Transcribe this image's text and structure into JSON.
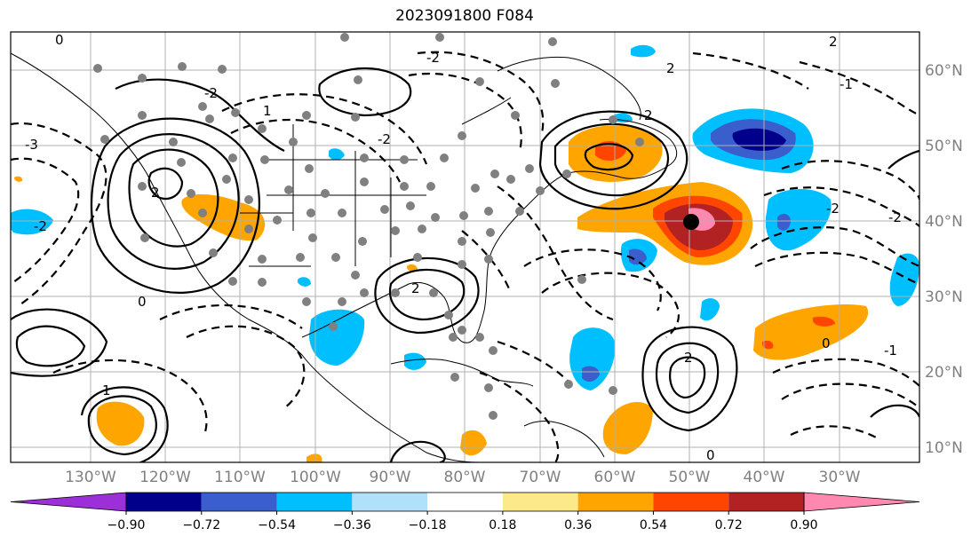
{
  "title": "2023091800 F084",
  "lat_labels": [
    "60°N",
    "50°N",
    "40°N",
    "30°N",
    "20°N",
    "10°N"
  ],
  "lon_labels": [
    "130°W",
    "120°W",
    "110°W",
    "100°W",
    "90°W",
    "80°W",
    "70°W",
    "60°W",
    "50°W",
    "40°W",
    "30°W"
  ],
  "colorbar": {
    "ticks": [
      "−0.90",
      "−0.72",
      "−0.54",
      "−0.36",
      "−0.18",
      "0.18",
      "0.36",
      "0.54",
      "0.72",
      "0.90"
    ],
    "colors": [
      "#9b30d9",
      "#00008b",
      "#3a5fcd",
      "#00bfff",
      "#b0e0fa",
      "#ffffff",
      "#fce98a",
      "#ffa500",
      "#ff4500",
      "#b22222",
      "#ff88b0"
    ]
  },
  "contour_labels": [
    "-2",
    "-2",
    "-2",
    "-2",
    "-2",
    "-2",
    "2",
    "2",
    "2",
    "2",
    "2",
    "2",
    "0",
    "0",
    "0",
    "0",
    "-1",
    "-1",
    "-3",
    "1",
    "1"
  ],
  "colors": {
    "positive": "#ffa500",
    "strong_positive": "#b22222",
    "negative": "#00bfff",
    "strong_negative": "#00008b",
    "station": "#808080",
    "center": "#000000"
  }
}
